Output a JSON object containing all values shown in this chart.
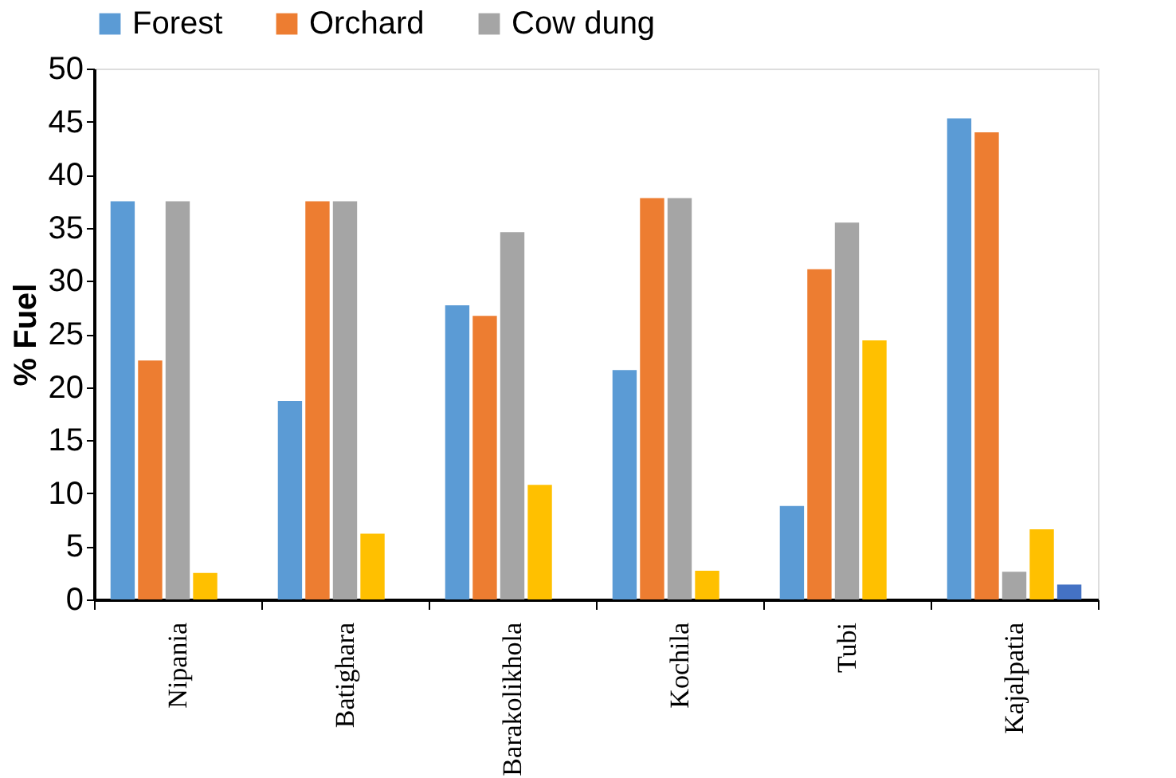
{
  "chart_data": {
    "type": "bar",
    "ylabel": "% Fuel",
    "categories": [
      "Nipania",
      "Batighara",
      "Barakolikhola",
      "Kochila",
      "Tubi",
      "Kajalpatia"
    ],
    "series": [
      {
        "name": "Forest",
        "color": "#5b9bd5",
        "values": [
          37.5,
          18.7,
          27.7,
          21.6,
          8.8,
          45.3
        ]
      },
      {
        "name": "Orchard",
        "color": "#ed7d31",
        "values": [
          22.5,
          37.5,
          26.7,
          37.8,
          31.1,
          44.0
        ]
      },
      {
        "name": "Cow dung",
        "color": "#a5a5a5",
        "values": [
          37.5,
          37.5,
          34.6,
          37.8,
          35.5,
          2.6
        ]
      },
      {
        "color": "#ffc000",
        "values": [
          2.5,
          6.2,
          10.8,
          2.7,
          24.4,
          6.6
        ]
      },
      {
        "color": "#4472c4",
        "values": [
          null,
          null,
          null,
          null,
          null,
          1.4
        ]
      }
    ],
    "ylim": [
      0,
      50
    ],
    "yticks": [
      0,
      5,
      10,
      15,
      20,
      25,
      30,
      35,
      40,
      45,
      50
    ],
    "grid": false,
    "legend": "top"
  }
}
